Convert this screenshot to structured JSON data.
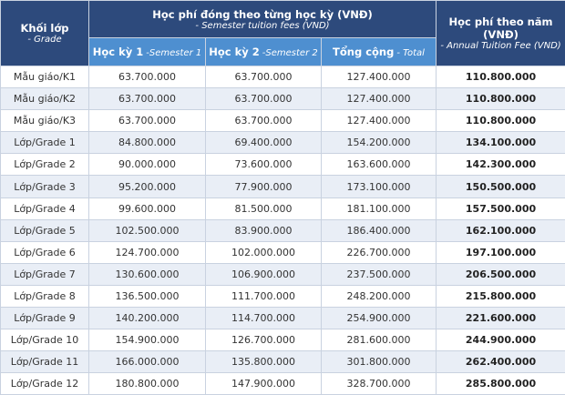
{
  "header": {
    "grade_title": "Khối lớp",
    "grade_sub": "- Grade",
    "semester_title": "Học phí đóng theo từng học kỳ (VNĐ)",
    "semester_sub": "- Semester tuition fees (VND)",
    "annual_title": "Học phí theo năm (VNĐ)",
    "annual_sub": "- Annual Tuition Fee (VND)",
    "subheaders": [
      {
        "vn": "Học kỳ 1",
        "en": "-Semester 1"
      },
      {
        "vn": "Học kỳ 2",
        "en": "-Semester 2"
      },
      {
        "vn": "Tổng cộng",
        "en": "- Total"
      }
    ]
  },
  "table": {
    "rows": [
      [
        "Mẫu giáo/K1",
        "63.700.000",
        "63.700.000",
        "127.400.000",
        "110.800.000"
      ],
      [
        "Mẫu giáo/K2",
        "63.700.000",
        "63.700.000",
        "127.400.000",
        "110.800.000"
      ],
      [
        "Mẫu giáo/K3",
        "63.700.000",
        "63.700.000",
        "127.400.000",
        "110.800.000"
      ],
      [
        "Lớp/Grade 1",
        "84.800.000",
        "69.400.000",
        "154.200.000",
        "134.100.000"
      ],
      [
        "Lớp/Grade 2",
        "90.000.000",
        "73.600.000",
        "163.600.000",
        "142.300.000"
      ],
      [
        "Lớp/Grade 3",
        "95.200.000",
        "77.900.000",
        "173.100.000",
        "150.500.000"
      ],
      [
        "Lớp/Grade 4",
        "99.600.000",
        "81.500.000",
        "181.100.000",
        "157.500.000"
      ],
      [
        "Lớp/Grade 5",
        "102.500.000",
        "83.900.000",
        "186.400.000",
        "162.100.000"
      ],
      [
        "Lớp/Grade 6",
        "124.700.000",
        "102.000.000",
        "226.700.000",
        "197.100.000"
      ],
      [
        "Lớp/Grade 7",
        "130.600.000",
        "106.900.000",
        "237.500.000",
        "206.500.000"
      ],
      [
        "Lớp/Grade 8",
        "136.500.000",
        "111.700.000",
        "248.200.000",
        "215.800.000"
      ],
      [
        "Lớp/Grade 9",
        "140.200.000",
        "114.700.000",
        "254.900.000",
        "221.600.000"
      ],
      [
        "Lớp/Grade 10",
        "154.900.000",
        "126.700.000",
        "281.600.000",
        "244.900.000"
      ],
      [
        "Lớp/Grade 11",
        "166.000.000",
        "135.800.000",
        "301.800.000",
        "262.400.000"
      ],
      [
        "Lớp/Grade 12",
        "180.800.000",
        "147.900.000",
        "328.700.000",
        "285.800.000"
      ]
    ]
  }
}
